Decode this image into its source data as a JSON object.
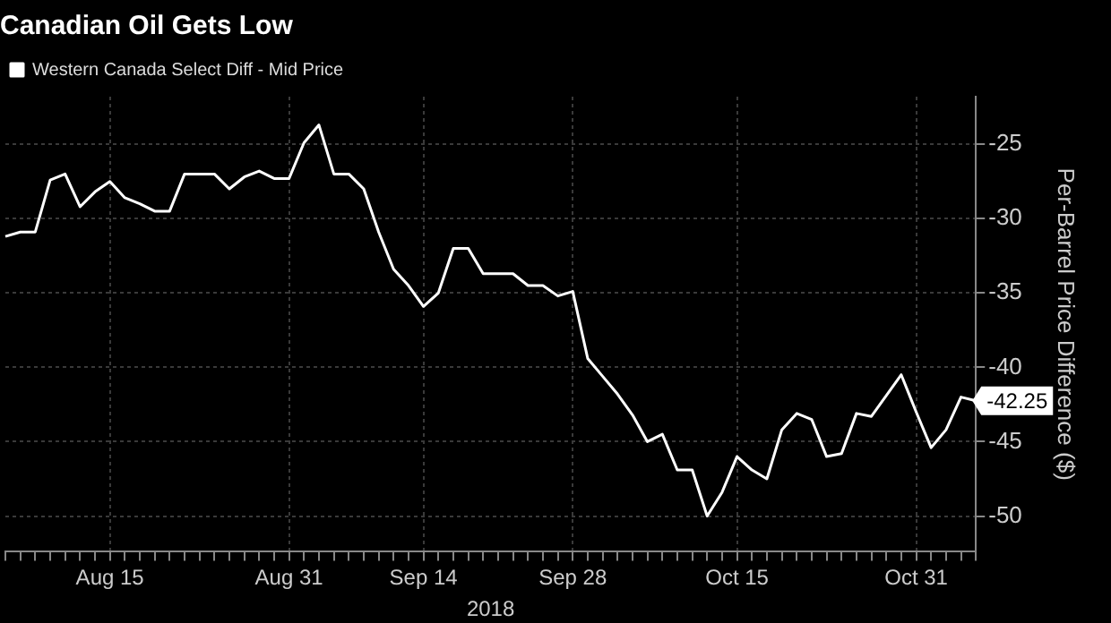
{
  "chart_data": {
    "type": "line",
    "title": "Canadian Oil Gets Low",
    "xlabel": "2018",
    "ylabel": "Per-Barrel Price Difference ($)",
    "categories": [
      null,
      null,
      null,
      null,
      null,
      null,
      null,
      "Aug 15",
      null,
      null,
      null,
      null,
      null,
      null,
      null,
      null,
      null,
      null,
      null,
      "Aug 31",
      null,
      null,
      null,
      null,
      null,
      null,
      null,
      null,
      "Sep 14",
      null,
      null,
      null,
      null,
      null,
      null,
      null,
      null,
      null,
      "Sep 28",
      null,
      null,
      null,
      null,
      null,
      null,
      null,
      null,
      null,
      null,
      "Oct 15",
      null,
      null,
      null,
      null,
      null,
      null,
      null,
      null,
      null,
      null,
      null,
      "Oct 31",
      null,
      null,
      null,
      null
    ],
    "series": [
      {
        "name": "Western Canada Select Diff - Mid Price",
        "color": "#ffffff",
        "values": [
          -31.2,
          -30.9,
          -30.9,
          -27.4,
          -27.0,
          -29.2,
          -28.2,
          -27.5,
          -28.6,
          -29.0,
          -29.5,
          -29.5,
          -27.0,
          -27.0,
          -27.0,
          -28.0,
          -27.2,
          -26.8,
          -27.3,
          -27.3,
          -24.9,
          -23.7,
          -27.0,
          -27.0,
          -28.0,
          -30.9,
          -33.4,
          -34.5,
          -35.9,
          -35.0,
          -32.0,
          -32.0,
          -33.7,
          -33.7,
          -33.7,
          -34.5,
          -34.5,
          -35.2,
          -34.9,
          -39.4,
          -40.6,
          -41.8,
          -43.2,
          -45.0,
          -44.5,
          -46.9,
          -46.9,
          -50.0,
          -48.4,
          -46.0,
          -46.9,
          -47.5,
          -44.2,
          -43.1,
          -43.5,
          -46.0,
          -45.8,
          -43.1,
          -43.3,
          -41.9,
          -40.5,
          -43.0,
          -45.4,
          -44.2,
          -42.0,
          -42.25
        ],
        "value_labels": [
          null,
          null,
          null,
          null,
          null,
          null,
          null,
          null,
          null,
          null,
          null,
          null,
          null,
          null,
          null,
          null,
          null,
          null,
          null,
          null,
          null,
          null,
          null,
          null,
          null,
          null,
          null,
          null,
          null,
          null,
          null,
          null,
          null,
          null,
          null,
          null,
          null,
          null,
          null,
          null,
          null,
          null,
          null,
          null,
          null,
          null,
          null,
          null,
          null,
          null,
          null,
          null,
          null,
          null,
          null,
          null,
          null,
          null,
          null,
          null,
          null,
          null,
          null,
          null,
          null,
          "-42.25"
        ]
      }
    ],
    "ylim": [
      -52.4,
      -21.8
    ],
    "yticks": [
      -50,
      -45,
      -40,
      -35,
      -30,
      -25
    ],
    "grid": true,
    "legend": "top left",
    "marker": "none",
    "line_style": "solid"
  }
}
